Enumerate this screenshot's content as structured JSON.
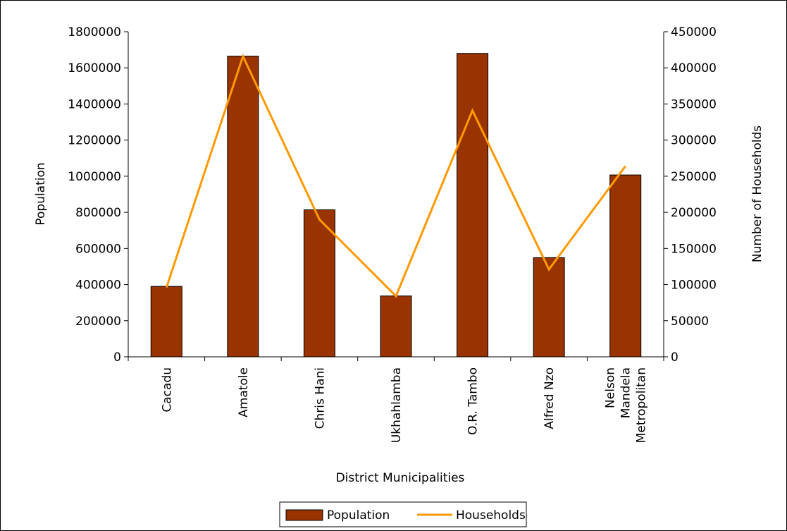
{
  "chart_data": {
    "type": "bar",
    "title": "",
    "xlabel": "District Municipalities",
    "ylabel": "Population",
    "y2label": "Number of Households",
    "categories": [
      [
        "Cacadu"
      ],
      [
        "Amatole"
      ],
      [
        "Chris Hani"
      ],
      [
        "Ukhahlamba"
      ],
      [
        "O.R. Tambo"
      ],
      [
        "Alfred Nzo"
      ],
      [
        "Nelson",
        "Mandela",
        "Metropolitan"
      ]
    ],
    "series": [
      {
        "name": "Population",
        "type": "bar",
        "axis": "left",
        "color": "#993300",
        "values": [
          390000,
          1665000,
          814000,
          337000,
          1680000,
          549000,
          1007000
        ]
      },
      {
        "name": "Households",
        "type": "line",
        "axis": "right",
        "color": "#FF9900",
        "values": [
          96000,
          416000,
          190000,
          84000,
          341000,
          121000,
          264000
        ]
      }
    ],
    "ylim": [
      0,
      1800000
    ],
    "y_ticks": [
      "0",
      "200000",
      "400000",
      "600000",
      "800000",
      "1000000",
      "1200000",
      "1400000",
      "1600000",
      "1800000"
    ],
    "y2lim": [
      0,
      450000
    ],
    "y2_ticks": [
      "0",
      "50000",
      "100000",
      "150000",
      "200000",
      "250000",
      "300000",
      "350000",
      "400000",
      "450000"
    ],
    "grid": false,
    "legend_position": "bottom"
  }
}
